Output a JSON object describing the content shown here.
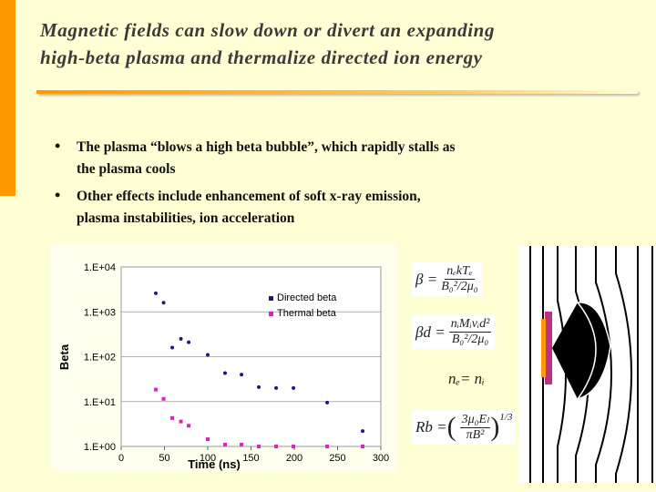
{
  "slide": {
    "title": [
      "Magnetic fields can slow down or divert an expanding",
      "high-beta plasma and thermalize directed ion energy"
    ],
    "bullets": [
      [
        "The plasma “blows a high beta bubble”, which rapidly stalls as",
        "the plasma cools"
      ],
      [
        "Other effects include enhancement of soft x-ray emission,",
        "plasma instabilities, ion acceleration"
      ]
    ],
    "equations": [
      {
        "lhs": "β =",
        "num": "nₑkTₑ",
        "den": "B₀²/2μ₀"
      },
      {
        "lhs": "βd =",
        "num": "nᵢMᵢvᵢd²",
        "den": "B₀²/2μ₀"
      },
      {
        "text": "nₑ= nᵢ"
      },
      {
        "lhs": "Rb =",
        "num": "3μ₀Eₗ",
        "den": "πB²",
        "exp": "1/3"
      }
    ]
  },
  "chart_data": {
    "type": "scatter",
    "xlabel": "Time (ns)",
    "ylabel": "Beta",
    "x": [
      40,
      49,
      59,
      69,
      78,
      100,
      120,
      139,
      159,
      179,
      199,
      238,
      279
    ],
    "series": [
      {
        "name": "Directed beta",
        "color": "#1a1a80",
        "values": [
          2600,
          1600,
          160,
          250,
          210,
          110,
          43,
          40,
          21,
          20,
          20,
          9.5,
          2.2
        ]
      },
      {
        "name": "Thermal beta",
        "color": "#e020c0",
        "values": [
          18.5,
          11.5,
          4.3,
          3.6,
          2.9,
          1.45,
          1.1,
          1.1,
          1.0,
          1.0,
          1.0,
          1.0,
          1.0
        ]
      }
    ],
    "xlim": [
      0,
      300
    ],
    "xticks": [
      0,
      50,
      100,
      150,
      200,
      250,
      300
    ],
    "ylim": [
      1,
      10000
    ],
    "yticks": [
      {
        "value": 1,
        "label": "1.E+00"
      },
      {
        "value": 10,
        "label": "1.E+01"
      },
      {
        "value": 100,
        "label": "1.E+02"
      },
      {
        "value": 1000,
        "label": "1.E+03"
      },
      {
        "value": 10000,
        "label": "1.E+04"
      }
    ],
    "log_scale": "y",
    "grid": true,
    "legend": "upper right"
  }
}
